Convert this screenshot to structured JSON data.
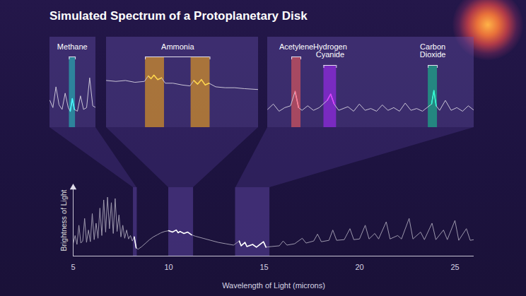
{
  "chart_data": [
    {
      "type": "line",
      "title": "Simulated Spectrum of a Protoplanetary Disk",
      "x_label": "Wavelength of Light (microns)",
      "y_label": "Brightness of Light",
      "xlim": [
        5,
        26
      ],
      "ylim": [
        0,
        100
      ],
      "xticks": [
        5,
        10,
        15,
        20,
        25
      ],
      "tick_labels": "x",
      "color": "#9d98ad",
      "x": [
        5.0,
        5.1,
        5.2,
        5.3,
        5.4,
        5.5,
        5.6,
        5.7,
        5.8,
        5.9,
        6.0,
        6.1,
        6.2,
        6.3,
        6.4,
        6.5,
        6.6,
        6.7,
        6.8,
        6.9,
        7.0,
        7.1,
        7.2,
        7.3,
        7.4,
        7.5,
        7.6,
        7.7,
        7.8,
        7.9,
        8.0,
        8.1,
        8.2,
        8.3,
        8.4,
        8.6,
        8.8,
        9.0,
        9.2,
        9.4,
        9.6,
        9.8,
        10.0,
        10.2,
        10.4,
        10.5,
        10.6,
        10.8,
        11.0,
        11.2,
        11.4,
        11.8,
        12.2,
        12.6,
        13.0,
        13.4,
        13.7,
        13.8,
        14.0,
        14.1,
        14.4,
        14.6,
        14.97,
        15.1,
        15.4,
        15.8,
        16.0,
        16.2,
        16.6,
        17.0,
        17.2,
        17.6,
        17.8,
        18.0,
        18.4,
        18.6,
        18.8,
        19.2,
        19.5,
        19.7,
        20.0,
        20.3,
        20.5,
        20.8,
        21.0,
        21.4,
        21.6,
        22.0,
        22.2,
        22.6,
        22.8,
        23.2,
        23.4,
        23.8,
        24.0,
        24.4,
        24.6,
        25.0,
        25.2,
        25.6,
        25.8,
        26.0
      ],
      "values": [
        18,
        30,
        17,
        45,
        19,
        22,
        55,
        20,
        38,
        21,
        62,
        24,
        48,
        26,
        70,
        30,
        82,
        35,
        86,
        40,
        78,
        33,
        84,
        36,
        60,
        28,
        45,
        26,
        38,
        25,
        30,
        22,
        28,
        12,
        10,
        14,
        19,
        24,
        28,
        31,
        34,
        36,
        37,
        35,
        38,
        34,
        36,
        33,
        35,
        31,
        29,
        26,
        23,
        20,
        18,
        16,
        22,
        15,
        20,
        14,
        17,
        13,
        21,
        13,
        14,
        15,
        22,
        16,
        18,
        26,
        19,
        22,
        32,
        21,
        23,
        38,
        23,
        24,
        40,
        24,
        25,
        45,
        25,
        33,
        25,
        50,
        25,
        30,
        25,
        55,
        25,
        35,
        24,
        48,
        24,
        38,
        24,
        52,
        23,
        40,
        23,
        24
      ],
      "bands": [
        {
          "x0": 8.15,
          "x1": 8.35,
          "color": "#4b3785"
        },
        {
          "x0": 10.0,
          "x1": 11.3,
          "color": "#4b3785"
        },
        {
          "x0": 13.5,
          "x1": 15.3,
          "color": "#4b3785"
        }
      ]
    },
    {
      "type": "line",
      "xlim": [
        8.0,
        8.45
      ],
      "ylim": [
        0,
        100
      ],
      "tick_labels": false,
      "color": "#c9c4d6",
      "x": [
        8.0,
        8.03,
        8.06,
        8.09,
        8.12,
        8.15,
        8.18,
        8.2,
        8.22,
        8.24,
        8.27,
        8.3,
        8.33,
        8.36,
        8.39,
        8.42,
        8.45
      ],
      "values": [
        30,
        22,
        45,
        25,
        20,
        38,
        22,
        18,
        32,
        20,
        18,
        35,
        20,
        22,
        55,
        24,
        22
      ],
      "bands": [
        {
          "x0": 8.19,
          "x1": 8.25,
          "color": "#2b9aa8"
        }
      ],
      "annotations": [
        {
          "text": "Methane",
          "x0": 8.19,
          "x1": 8.25
        }
      ]
    },
    {
      "type": "line",
      "xlim": [
        9.8,
        11.4
      ],
      "ylim": [
        0,
        100
      ],
      "tick_labels": false,
      "color": "#c9c4d6",
      "x": [
        9.8,
        9.9,
        10.0,
        10.1,
        10.2,
        10.24,
        10.27,
        10.3,
        10.34,
        10.38,
        10.42,
        10.5,
        10.6,
        10.68,
        10.72,
        10.76,
        10.8,
        10.84,
        10.88,
        10.95,
        11.05,
        11.15,
        11.25,
        11.4
      ],
      "values": [
        52,
        51,
        52,
        50,
        51,
        57,
        54,
        58,
        53,
        55,
        49,
        49,
        47,
        46,
        52,
        48,
        53,
        47,
        49,
        45,
        44,
        44,
        43,
        42
      ],
      "bands": [
        {
          "x0": 10.21,
          "x1": 10.41,
          "color": "#c4862e"
        },
        {
          "x0": 10.69,
          "x1": 10.89,
          "color": "#c4862e"
        }
      ],
      "annotations": [
        {
          "text": "Ammonia",
          "x0": 10.21,
          "x1": 10.89
        }
      ]
    },
    {
      "type": "line",
      "xlim": [
        13.5,
        15.3
      ],
      "ylim": [
        0,
        100
      ],
      "tick_labels": false,
      "color": "#c9c4d6",
      "x": [
        13.5,
        13.55,
        13.6,
        13.65,
        13.7,
        13.74,
        13.77,
        13.8,
        13.85,
        13.9,
        13.95,
        14.02,
        14.05,
        14.08,
        14.12,
        14.2,
        14.25,
        14.3,
        14.35,
        14.4,
        14.45,
        14.5,
        14.55,
        14.6,
        14.65,
        14.7,
        14.75,
        14.8,
        14.85,
        14.93,
        14.95,
        14.97,
        15.0,
        15.05,
        15.1,
        15.15,
        15.2,
        15.25,
        15.3
      ],
      "values": [
        20,
        26,
        18,
        22,
        24,
        40,
        22,
        19,
        24,
        19,
        22,
        30,
        37,
        26,
        19,
        23,
        18,
        26,
        19,
        21,
        18,
        25,
        19,
        22,
        18,
        27,
        19,
        21,
        18,
        26,
        41,
        24,
        19,
        30,
        19,
        22,
        18,
        24,
        19
      ],
      "bands": [
        {
          "x0": 13.71,
          "x1": 13.79,
          "color": "#c2505f"
        },
        {
          "x0": 13.99,
          "x1": 14.1,
          "color": "#8a2bd6"
        },
        {
          "x0": 14.9,
          "x1": 14.98,
          "color": "#1f9e86"
        }
      ],
      "annotations": [
        {
          "text": "Acetylene",
          "x0": 13.71,
          "x1": 13.79
        },
        {
          "text": "Hydrogen\nCyanide",
          "x0": 13.99,
          "x1": 14.1
        },
        {
          "text": "Carbon\nDioxide",
          "x0": 14.9,
          "x1": 14.98
        }
      ]
    }
  ]
}
